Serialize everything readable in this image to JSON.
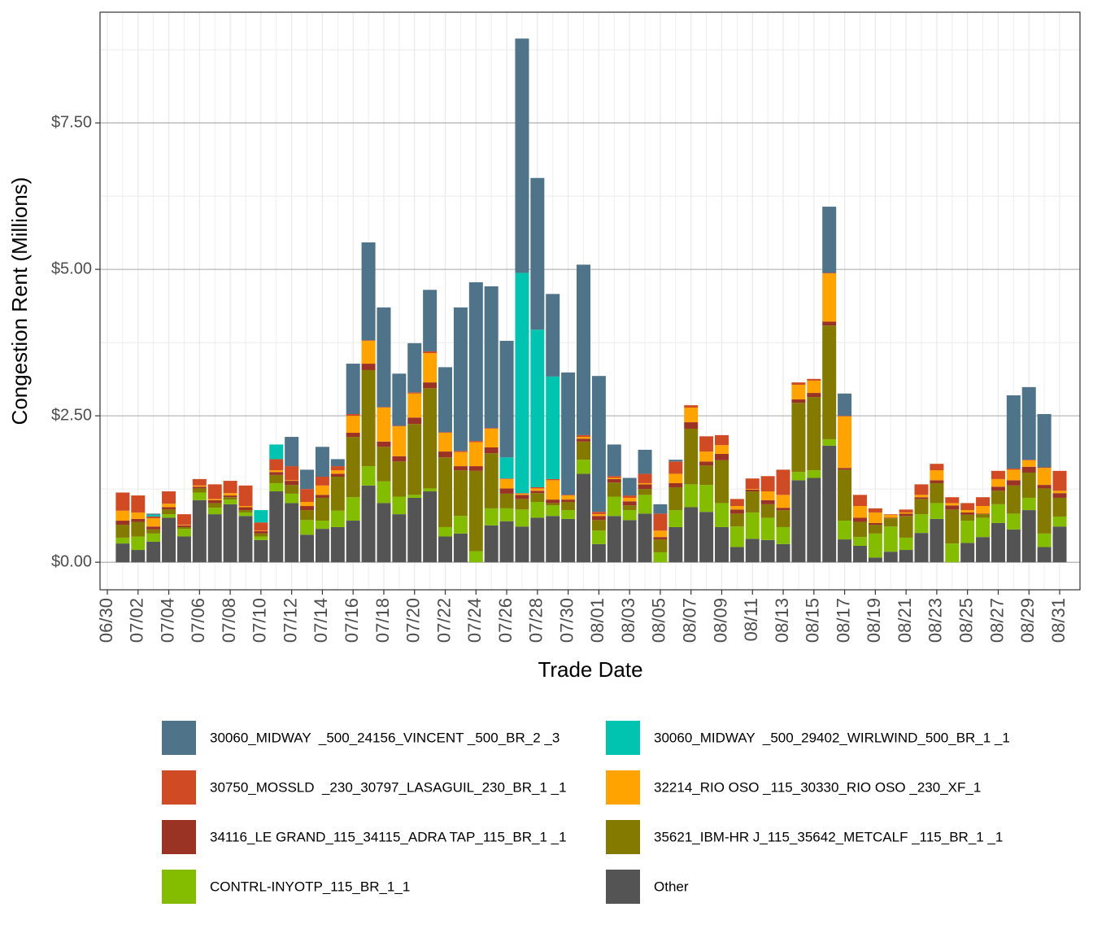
{
  "chart_data": {
    "type": "stacked_bar",
    "xlabel": "Trade Date",
    "ylabel": "Congestion Rent (Millions)",
    "categories": [
      "06/30",
      null,
      "07/02",
      null,
      "07/04",
      null,
      "07/06",
      null,
      "07/08",
      null,
      "07/10",
      null,
      "07/12",
      null,
      "07/14",
      null,
      "07/16",
      null,
      "07/18",
      null,
      "07/20",
      null,
      "07/22",
      null,
      "07/24",
      null,
      "07/26",
      null,
      "07/28",
      null,
      "07/30",
      null,
      "08/01",
      null,
      "08/03",
      null,
      "08/05",
      null,
      "08/07",
      null,
      "08/09",
      null,
      "08/11",
      null,
      "08/13",
      null,
      "08/15",
      null,
      "08/17",
      null,
      "08/19",
      null,
      "08/21",
      null,
      "08/23",
      null,
      "08/25",
      null,
      "08/27",
      null,
      "08/29",
      null,
      "08/31"
    ],
    "ylim": [
      -0.47,
      9.39
    ],
    "yticks": [
      {
        "value": 0,
        "label": "$0.00"
      },
      {
        "value": 2.5,
        "label": "$2.50"
      },
      {
        "value": 5,
        "label": "$5.00"
      },
      {
        "value": 7.5,
        "label": "$7.50"
      }
    ],
    "grid": true,
    "legend": "bottom",
    "series": [
      {
        "name": "30060_MIDWAY  _500_24156_VINCENT _500_BR_2 _3",
        "color": "#4f7389",
        "values": [
          null,
          0,
          0,
          0.02,
          0,
          0,
          0,
          0,
          0,
          0,
          0,
          0,
          0.5,
          0.33,
          0.51,
          0.12,
          0.86,
          1.67,
          1.7,
          0.89,
          0.84,
          1.05,
          1.11,
          2.45,
          2.71,
          2.42,
          1.99,
          4.0,
          2.59,
          1.41,
          2.09,
          2.91,
          2.32,
          0.54,
          0.3,
          0.41,
          0.16,
          0.03,
          0,
          0,
          0,
          0,
          0,
          0,
          0,
          0,
          0,
          1.13,
          0.38,
          0,
          0,
          0,
          0,
          0,
          0,
          0,
          0,
          0,
          0,
          1.25,
          1.24,
          0.91,
          0
        ]
      },
      {
        "name": "30060_MIDWAY  _500_29402_WIRLWIND_500_BR_1 _1",
        "color": "#00c4b0",
        "values": [
          null,
          0,
          0,
          0.03,
          0,
          0,
          0,
          0,
          0,
          0,
          0.21,
          0.25,
          0,
          0,
          0,
          0,
          0,
          0,
          0,
          0,
          0,
          0,
          0,
          0,
          0,
          0,
          0.36,
          3.76,
          2.69,
          1.75,
          0,
          0,
          0,
          0,
          0,
          0,
          0,
          0,
          0,
          0,
          0,
          0,
          0,
          0,
          0,
          0,
          0,
          0,
          0,
          0,
          0,
          0,
          0,
          0,
          0,
          0,
          0,
          0,
          0,
          0,
          0,
          0,
          0
        ]
      },
      {
        "name": "30750_MOSSLD  _230_30797_LASAGUIL_230_BR_1 _1",
        "color": "#d04a24",
        "values": [
          null,
          0.31,
          0.29,
          0.03,
          0.21,
          0.18,
          0.11,
          0.25,
          0.21,
          0.35,
          0.14,
          0.19,
          0.24,
          0.22,
          0.15,
          0.07,
          0.03,
          0.01,
          0.01,
          0.01,
          0.02,
          0.03,
          0.01,
          0.02,
          0.02,
          0.01,
          0.01,
          0.01,
          0.02,
          0.02,
          0.01,
          0.03,
          0.04,
          0.03,
          0.04,
          0.16,
          0.29,
          0.21,
          0.04,
          0.26,
          0.17,
          0.12,
          0.18,
          0.26,
          0.43,
          0.04,
          0.03,
          0.01,
          0.01,
          0.19,
          0.07,
          0.01,
          0.05,
          0.18,
          0.11,
          0.1,
          0.12,
          0.15,
          0.14,
          0.02,
          0.01,
          0.01,
          0.34
        ]
      },
      {
        "name": "32214_RIO OSO _115_30330_RIO OSO _230_XF_1",
        "color": "#ffa300",
        "values": [
          null,
          0.17,
          0.11,
          0.14,
          0.06,
          0.01,
          0.02,
          0.02,
          0.04,
          0.02,
          0.01,
          0.03,
          0.01,
          0.07,
          0.16,
          0.06,
          0.29,
          0.39,
          0.58,
          0.51,
          0.41,
          0.5,
          0.32,
          0.24,
          0.41,
          0.32,
          0.16,
          0.02,
          0.04,
          0.33,
          0.07,
          0.03,
          0.03,
          0.02,
          0.06,
          0.02,
          0.11,
          0.16,
          0.25,
          0.17,
          0.15,
          0.06,
          0.01,
          0.15,
          0.22,
          0.25,
          0.21,
          0.82,
          0.88,
          0.2,
          0.18,
          0.05,
          0.02,
          0.04,
          0.17,
          0.04,
          0.04,
          0.13,
          0.13,
          0.18,
          0.11,
          0.29,
          0.04
        ]
      },
      {
        "name": "34116_LE GRAND_115_34115_ADRA TAP_115_BR_1 _1",
        "color": "#9a3324",
        "values": [
          null,
          0.07,
          0.05,
          0.05,
          0.04,
          0.03,
          0.03,
          0.05,
          0.03,
          0.05,
          0.04,
          0.05,
          0.07,
          0.07,
          0.05,
          0.05,
          0.07,
          0.11,
          0.09,
          0.09,
          0.11,
          0.1,
          0.1,
          0.07,
          0.08,
          0.1,
          0.09,
          0.07,
          0.04,
          0.06,
          0.04,
          0.05,
          0.07,
          0.06,
          0.07,
          0.08,
          0.04,
          0.07,
          0.11,
          0.07,
          0.11,
          0.07,
          0.03,
          0.07,
          0.04,
          0.06,
          0.07,
          0.07,
          0.03,
          0.07,
          0.03,
          0.01,
          0.04,
          0.03,
          0.05,
          0.07,
          0.04,
          0.01,
          0.07,
          0.09,
          0.1,
          0.06,
          0.08
        ]
      },
      {
        "name": "35621_IBM-HR J_115_35642_METCALF _115_BR_1 _1",
        "color": "#847a00",
        "values": [
          null,
          0.22,
          0.25,
          0.07,
          0.08,
          0.03,
          0.07,
          0.08,
          0.04,
          0.04,
          0.05,
          0.14,
          0.15,
          0.17,
          0.39,
          0.58,
          1.03,
          1.64,
          0.59,
          0.6,
          1.21,
          1.71,
          1.19,
          0.78,
          1.37,
          0.94,
          0.25,
          0.18,
          0.15,
          0.04,
          0.14,
          0.31,
          0.18,
          0.24,
          0.08,
          0.1,
          0.22,
          0.39,
          0.95,
          0.33,
          0.73,
          0.22,
          0.36,
          0.23,
          0.29,
          1.18,
          1.25,
          1.94,
          0.87,
          0.26,
          0.15,
          0.14,
          0.37,
          0.26,
          0.34,
          0.58,
          0.1,
          0.06,
          0.23,
          0.48,
          0.43,
          0.77,
          0.32
        ]
      },
      {
        "name": "CONTRL-INYOTP_115_BR_1_1",
        "color": "#84bd00",
        "values": [
          null,
          0.1,
          0.23,
          0.14,
          0.06,
          0.13,
          0.13,
          0.11,
          0.08,
          0.06,
          0.06,
          0.14,
          0.16,
          0.25,
          0.14,
          0.28,
          0.4,
          0.33,
          0.37,
          0.3,
          0.05,
          0.05,
          0.16,
          0.3,
          0.19,
          0.29,
          0.22,
          0.29,
          0.27,
          0.18,
          0.15,
          0.24,
          0.23,
          0.33,
          0.17,
          0.32,
          0.17,
          0.29,
          0.39,
          0.46,
          0.41,
          0.35,
          0.45,
          0.38,
          0.29,
          0.14,
          0.13,
          0.11,
          0.32,
          0.15,
          0.41,
          0.43,
          0.21,
          0.32,
          0.27,
          0.32,
          0.38,
          0.33,
          0.32,
          0.27,
          0.21,
          0.23,
          0.17
        ]
      },
      {
        "name": "Other",
        "color": "#545454",
        "values": [
          null,
          0.32,
          0.21,
          0.35,
          0.76,
          0.44,
          1.06,
          0.82,
          0.99,
          0.79,
          0.38,
          1.21,
          1.01,
          0.47,
          0.57,
          0.6,
          0.71,
          1.31,
          1.01,
          0.82,
          1.1,
          1.21,
          0.44,
          0.49,
          0,
          0.63,
          0.7,
          0.61,
          0.76,
          0.79,
          0.74,
          1.51,
          0.31,
          0.79,
          0.72,
          0.83,
          0,
          0.6,
          0.94,
          0.86,
          0.6,
          0.26,
          0.4,
          0.38,
          0.31,
          1.4,
          1.44,
          1.99,
          0.39,
          0.28,
          0.08,
          0.18,
          0.21,
          0.5,
          0.74,
          0,
          0.33,
          0.43,
          0.67,
          0.56,
          0.89,
          0.26,
          0.61
        ]
      }
    ]
  }
}
